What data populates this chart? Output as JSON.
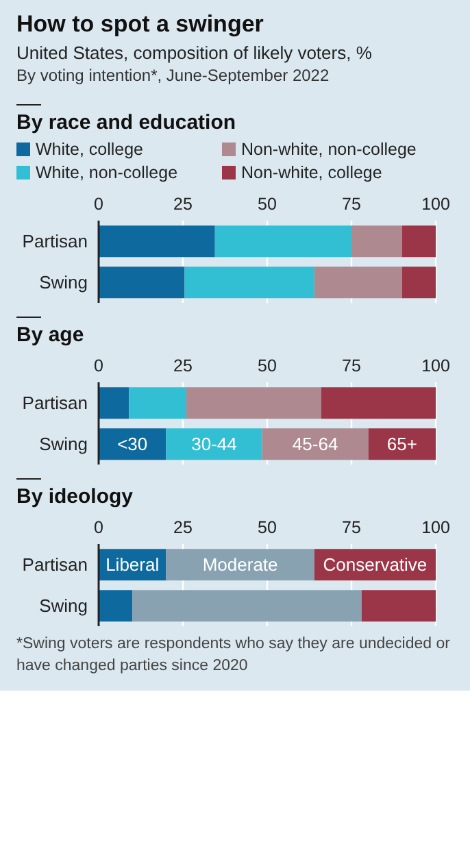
{
  "chart_data": [
    {
      "type": "other",
      "title": "How to spot a swinger",
      "subtitle": "United States, composition of likely voters, %",
      "annotations": [
        "By voting intention*, June-September 2022"
      ]
    },
    {
      "type": "bar",
      "orientation": "horizontal",
      "stacked": true,
      "title": "By race and education",
      "categories": [
        "Partisan",
        "Swing"
      ],
      "xlim": [
        0,
        100
      ],
      "xticks": [
        0,
        25,
        50,
        75,
        100
      ],
      "grid": "x",
      "legend": "top",
      "series": [
        {
          "name": "White, college",
          "color": "#0e6a9e",
          "values": [
            34.5,
            25.5
          ]
        },
        {
          "name": "White, non-college",
          "color": "#33bfd3",
          "values": [
            40.5,
            38.5
          ]
        },
        {
          "name": "Non-white, non-college",
          "color": "#ae8a90",
          "values": [
            15,
            26
          ]
        },
        {
          "name": "Non-white, college",
          "color": "#9b3648",
          "values": [
            10,
            10
          ]
        }
      ]
    },
    {
      "type": "bar",
      "orientation": "horizontal",
      "stacked": true,
      "title": "By age",
      "categories": [
        "Partisan",
        "Swing"
      ],
      "xlim": [
        0,
        100
      ],
      "xticks": [
        0,
        25,
        50,
        75,
        100
      ],
      "grid": "x",
      "legend": "inside bottom",
      "series": [
        {
          "name": "<30",
          "color": "#0e6a9e",
          "values": [
            9,
            20
          ]
        },
        {
          "name": "30-44",
          "color": "#33bfd3",
          "values": [
            17,
            28.5
          ]
        },
        {
          "name": "45-64",
          "color": "#ae8a90",
          "values": [
            40,
            31.5
          ]
        },
        {
          "name": "65+",
          "color": "#9b3648",
          "values": [
            34,
            20
          ]
        }
      ]
    },
    {
      "type": "bar",
      "orientation": "horizontal",
      "stacked": true,
      "title": "By ideology",
      "categories": [
        "Partisan",
        "Swing"
      ],
      "xlim": [
        0,
        100
      ],
      "xticks": [
        0,
        25,
        50,
        75,
        100
      ],
      "grid": "x",
      "legend": "inside top",
      "annotations": [
        "*Swing voters are respondents who say they are undecided or have changed parties since 2020"
      ],
      "series": [
        {
          "name": "Liberal",
          "color": "#0e6a9e",
          "values": [
            20,
            10
          ]
        },
        {
          "name": "Moderate",
          "color": "#88a2b1",
          "values": [
            44,
            68
          ]
        },
        {
          "name": "Conservative",
          "color": "#9b3648",
          "values": [
            36,
            22
          ]
        }
      ]
    }
  ]
}
